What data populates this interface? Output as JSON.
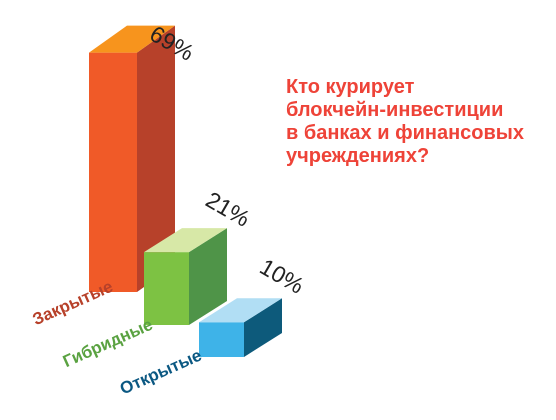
{
  "title_lines": [
    "Кто курирует",
    "блокчейн-инвестиции",
    "в банках и финансовых",
    "учреждениях?"
  ],
  "chart_data": {
    "type": "bar",
    "categories": [
      "Закрытые",
      "Гибридные",
      "Открытые"
    ],
    "values": [
      69,
      21,
      10
    ],
    "value_labels": [
      "69%",
      "21%",
      "10%"
    ],
    "unit": "%",
    "title": "Кто курирует блокчейн-инвестиции в банках и финансовых учреждениях?",
    "three_d": true,
    "grid": false,
    "legend": "none",
    "colors": [
      {
        "top": "#f7941d",
        "front": "#f05a28",
        "side": "#b7412a",
        "label": "#b7412a"
      },
      {
        "top": "#d7e8a7",
        "front": "#7dc243",
        "side": "#4f9448",
        "label": "#5aa241"
      },
      {
        "top": "#b1def4",
        "front": "#3eb3e8",
        "side": "#0d5a7b",
        "label": "#0b5882"
      }
    ]
  }
}
